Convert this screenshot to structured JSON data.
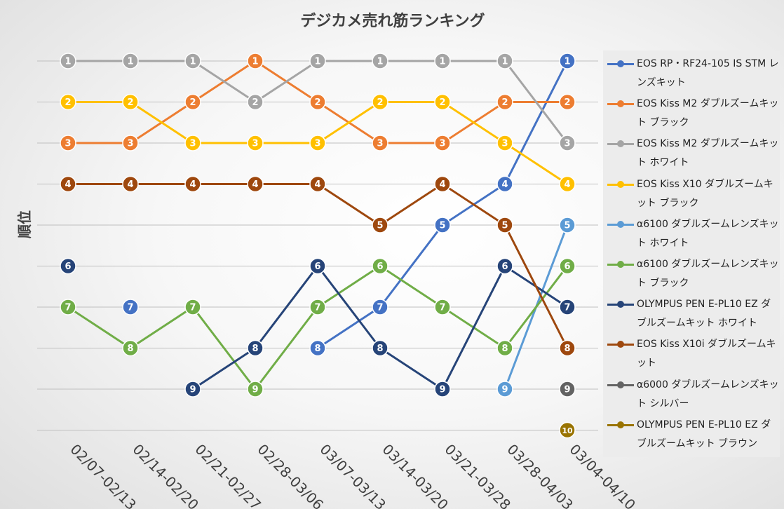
{
  "chart_data": {
    "type": "line",
    "title": "デジカメ売れ筋ランキング",
    "ylabel": "順位",
    "xlabel": "",
    "y_inverted": true,
    "ylim": [
      1,
      10
    ],
    "grid": true,
    "legend_position": "right",
    "categories": [
      "02/07-02/13",
      "02/14-02/20",
      "02/21-02/27",
      "02/28-03/06",
      "03/07-03/13",
      "03/14-03/20",
      "03/21-03/28",
      "03/28-04/03",
      "03/04-04/10"
    ],
    "series": [
      {
        "name": "EOS RP・RF24-105 IS STM レンズキット",
        "color": "#4472C4",
        "values": [
          null,
          7,
          null,
          null,
          8,
          7,
          5,
          4,
          1
        ]
      },
      {
        "name": "EOS Kiss M2 ダブルズームキット ブラック",
        "color": "#ED7D31",
        "values": [
          3,
          3,
          2,
          1,
          2,
          3,
          3,
          2,
          2
        ]
      },
      {
        "name": "EOS Kiss M2 ダブルズームキット ホワイト",
        "color": "#A5A5A5",
        "values": [
          1,
          1,
          1,
          2,
          1,
          1,
          1,
          1,
          3
        ]
      },
      {
        "name": "EOS Kiss X10 ダブルズームキット ブラック",
        "color": "#FFC000",
        "values": [
          2,
          2,
          3,
          3,
          3,
          2,
          2,
          3,
          4
        ]
      },
      {
        "name": "α6100 ダブルズームレンズキット ホワイト",
        "color": "#5B9BD5",
        "values": [
          null,
          null,
          null,
          null,
          null,
          null,
          null,
          9,
          5
        ]
      },
      {
        "name": "α6100 ダブルズームレンズキット ブラック",
        "color": "#70AD47",
        "values": [
          7,
          8,
          7,
          9,
          7,
          6,
          7,
          8,
          6
        ]
      },
      {
        "name": "OLYMPUS PEN E-PL10 EZ ダブルズームキット ホワイト",
        "color": "#264478",
        "values": [
          6,
          null,
          9,
          8,
          6,
          8,
          9,
          6,
          7
        ]
      },
      {
        "name": "EOS Kiss X10i ダブルズームキット",
        "color": "#9E480E",
        "values": [
          4,
          4,
          4,
          4,
          4,
          5,
          4,
          5,
          8
        ]
      },
      {
        "name": "α6000 ダブルズームレンズキット シルバー",
        "color": "#636363",
        "values": [
          null,
          null,
          null,
          null,
          null,
          null,
          null,
          null,
          9
        ]
      },
      {
        "name": "OLYMPUS PEN E-PL10 EZ ダブルズームキット ブラウン",
        "color": "#997300",
        "values": [
          null,
          null,
          null,
          null,
          null,
          null,
          null,
          null,
          10
        ]
      }
    ]
  }
}
